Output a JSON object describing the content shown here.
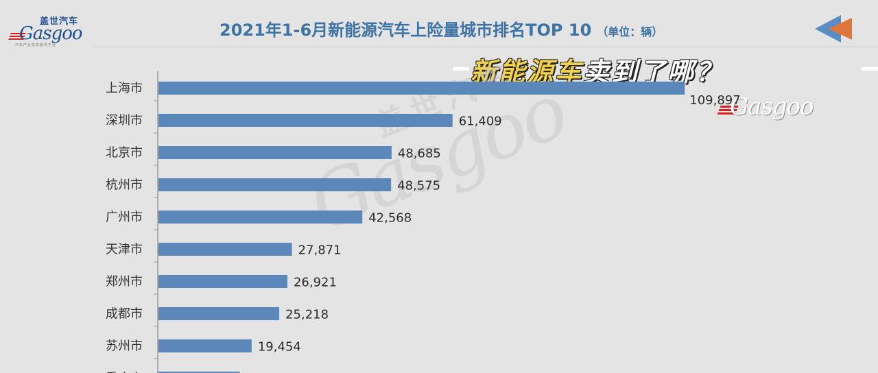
{
  "logo": {
    "cn": "盖世汽车",
    "en": "Gasgoo",
    "tagline": "汽车产业信息服务平台"
  },
  "header": {
    "title": "2021年1-6月新能源汽车上险量城市排名TOP 10",
    "unit": "（单位：辆）"
  },
  "banner": {
    "highlight": "新能源车",
    "rest": "卖到了哪？"
  },
  "brand_mark": "Gasgoo",
  "watermark": {
    "cn": "盖世汽车",
    "en": "Gasgoo"
  },
  "colors": {
    "bar": "#5b87bb",
    "title": "#3e73a6",
    "background": "#e4e4e4",
    "banner_highlight": "#f2d24a"
  },
  "chart_data": {
    "type": "bar",
    "orientation": "horizontal",
    "title": "2021年1-6月新能源汽车上险量城市排名TOP 10",
    "unit": "辆",
    "categories": [
      "上海市",
      "深圳市",
      "北京市",
      "杭州市",
      "广州市",
      "天津市",
      "郑州市",
      "成都市",
      "苏州市",
      "重庆市"
    ],
    "value_labels": [
      "109,897",
      "61,409",
      "48,685",
      "48,575",
      "42,568",
      "27,871",
      "26,921",
      "25,218",
      "19,454",
      ""
    ],
    "values": [
      109897,
      61409,
      48685,
      48575,
      42568,
      27871,
      26921,
      25218,
      19454,
      17000
    ],
    "xlim": [
      0,
      110000
    ],
    "grid": false,
    "legend": "none"
  }
}
